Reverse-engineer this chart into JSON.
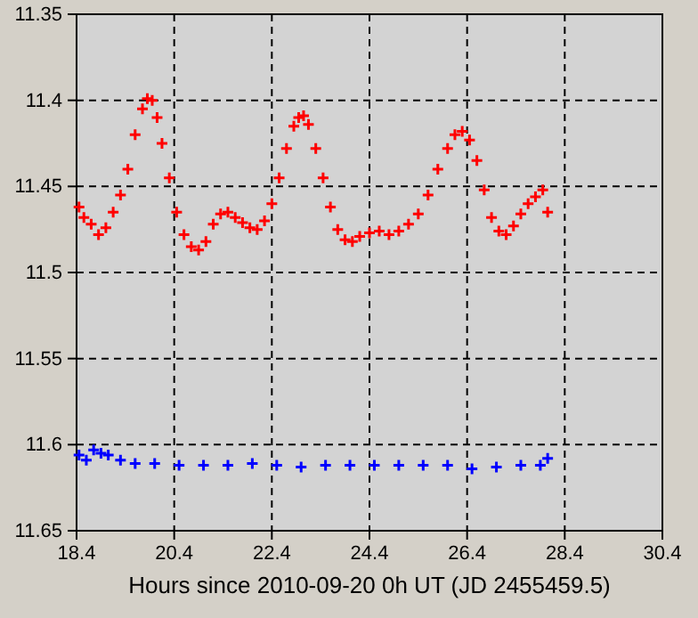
{
  "chart_data": {
    "type": "scatter",
    "xlabel": "Hours since 2010-09-20 0h UT (JD 2455459.5)",
    "xlim": [
      18.4,
      30.4
    ],
    "xticks": [
      18.4,
      20.4,
      22.4,
      24.4,
      26.4,
      28.4,
      30.4
    ],
    "ylim": [
      11.65,
      11.35
    ],
    "yticks": [
      11.35,
      11.4,
      11.45,
      11.5,
      11.55,
      11.6,
      11.65
    ],
    "grid": true,
    "marker": "cross",
    "series": [
      {
        "color": "#ff0000",
        "x": [
          18.45,
          18.55,
          18.7,
          18.85,
          19.0,
          19.15,
          19.3,
          19.45,
          19.6,
          19.75,
          19.85,
          19.95,
          20.05,
          20.15,
          20.3,
          20.45,
          20.6,
          20.75,
          20.9,
          21.05,
          21.2,
          21.35,
          21.5,
          21.65,
          21.8,
          21.95,
          22.1,
          22.25,
          22.4,
          22.55,
          22.7,
          22.85,
          22.95,
          23.05,
          23.15,
          23.3,
          23.45,
          23.6,
          23.75,
          23.9,
          24.05,
          24.2,
          24.4,
          24.6,
          24.8,
          25.0,
          25.2,
          25.4,
          25.6,
          25.8,
          26.0,
          26.15,
          26.3,
          26.45,
          26.6,
          26.75,
          26.9,
          27.05,
          27.2,
          27.35,
          27.5,
          27.65,
          27.8,
          27.95,
          28.05
        ],
        "values": [
          11.462,
          11.468,
          11.472,
          11.478,
          11.474,
          11.465,
          11.455,
          11.44,
          11.42,
          11.405,
          11.399,
          11.4,
          11.41,
          11.425,
          11.445,
          11.465,
          11.478,
          11.485,
          11.487,
          11.482,
          11.472,
          11.466,
          11.465,
          11.468,
          11.471,
          11.474,
          11.475,
          11.47,
          11.46,
          11.445,
          11.428,
          11.415,
          11.41,
          11.409,
          11.414,
          11.428,
          11.445,
          11.462,
          11.475,
          11.481,
          11.482,
          11.479,
          11.477,
          11.476,
          11.478,
          11.476,
          11.472,
          11.466,
          11.455,
          11.44,
          11.428,
          11.42,
          11.418,
          11.423,
          11.435,
          11.452,
          11.468,
          11.476,
          11.478,
          11.473,
          11.466,
          11.46,
          11.456,
          11.452,
          11.465
        ]
      },
      {
        "color": "#0000ff",
        "x": [
          18.45,
          18.6,
          18.75,
          18.9,
          19.05,
          19.3,
          19.6,
          20.0,
          20.5,
          21.0,
          21.5,
          22.0,
          22.5,
          23.0,
          23.5,
          24.0,
          24.5,
          25.0,
          25.5,
          26.0,
          26.5,
          27.0,
          27.5,
          27.9,
          28.05
        ],
        "values": [
          11.606,
          11.609,
          11.603,
          11.605,
          11.606,
          11.609,
          11.611,
          11.611,
          11.612,
          11.612,
          11.612,
          11.611,
          11.612,
          11.613,
          11.612,
          11.612,
          11.612,
          11.612,
          11.612,
          11.612,
          11.614,
          11.613,
          11.612,
          11.612,
          11.608
        ]
      }
    ]
  }
}
